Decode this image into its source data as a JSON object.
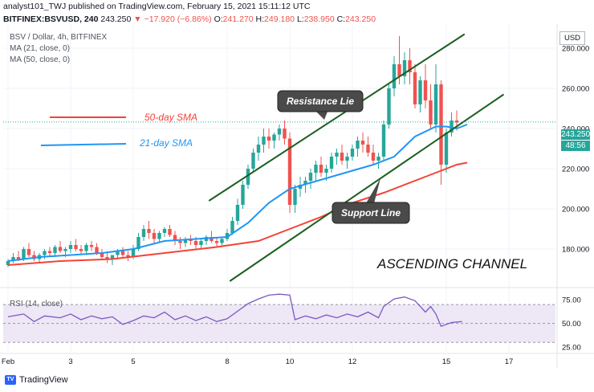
{
  "header": {
    "line1": "analyst101_TWJ published on TradingView.com, February 15, 2021 15:11:12 UTC",
    "symbol": "BITFINEX:BSVUSD, 240",
    "last": "243.250",
    "change": "▼ −17.920 (−6.86%)",
    "o_label": "O:",
    "o": "241.270",
    "h_label": "H:",
    "h": "249.180",
    "l_label": "L:",
    "l": "238.950",
    "c_label": "C:",
    "c": "243.250"
  },
  "legend": {
    "title": "BSV / Dollar, 4h, BITFINEX",
    "ma21": "MA (21, close, 0)",
    "ma50": "MA (50, close, 0)"
  },
  "rsi_legend": "RSI (14, close)",
  "currency_button": "USD",
  "price_label": "243.250",
  "time_label": "48:56",
  "annotations": {
    "sma50": "50-day SMA",
    "sma21": "21-day SMA",
    "resistance": "Resistance Lie",
    "support": "Support Line",
    "channel": "ASCENDING CHANNEL"
  },
  "brand": "TradingView",
  "colors": {
    "up": "#26a69a",
    "down": "#ef5350",
    "ma21": "#2196f3",
    "ma50": "#f44336",
    "channel": "#1b5e20",
    "rsi": "#7e57c2",
    "rsi_band": "#ede7f6"
  },
  "chart_data": {
    "type": "candlestick",
    "price_axis": {
      "ticks": [
        "280.000",
        "260.000",
        "240.000",
        "220.000",
        "200.000",
        "180.000"
      ],
      "ylim": [
        166,
        292
      ]
    },
    "rsi_axis": {
      "ticks": [
        "75.00",
        "50.00",
        "25.00"
      ],
      "band": [
        30,
        70
      ],
      "ylim": [
        20,
        82
      ]
    },
    "x_ticks": [
      "Feb",
      "3",
      "5",
      "8",
      "10",
      "12",
      "15",
      "17"
    ],
    "x_tick_index": [
      0,
      12,
      24,
      42,
      54,
      66,
      84,
      96
    ],
    "candles": [
      [
        172,
        175,
        171,
        174
      ],
      [
        174,
        178,
        173,
        176
      ],
      [
        176,
        179,
        174,
        175
      ],
      [
        175,
        181,
        174,
        180
      ],
      [
        180,
        183,
        176,
        177
      ],
      [
        177,
        179,
        174,
        175
      ],
      [
        175,
        178,
        173,
        177
      ],
      [
        177,
        180,
        175,
        179
      ],
      [
        179,
        181,
        176,
        178
      ],
      [
        178,
        182,
        176,
        181
      ],
      [
        181,
        184,
        178,
        179
      ],
      [
        179,
        181,
        176,
        180
      ],
      [
        180,
        184,
        178,
        182
      ],
      [
        182,
        185,
        179,
        180
      ],
      [
        180,
        182,
        177,
        179
      ],
      [
        179,
        183,
        177,
        182
      ],
      [
        182,
        184,
        179,
        181
      ],
      [
        181,
        183,
        177,
        178
      ],
      [
        178,
        180,
        175,
        176
      ],
      [
        176,
        178,
        173,
        175
      ],
      [
        175,
        177,
        172,
        177
      ],
      [
        177,
        180,
        175,
        179
      ],
      [
        179,
        181,
        176,
        177
      ],
      [
        177,
        179,
        174,
        176
      ],
      [
        176,
        182,
        175,
        180
      ],
      [
        180,
        188,
        179,
        186
      ],
      [
        186,
        192,
        184,
        190
      ],
      [
        190,
        194,
        185,
        188
      ],
      [
        188,
        190,
        183,
        185
      ],
      [
        185,
        189,
        183,
        188
      ],
      [
        188,
        191,
        186,
        190
      ],
      [
        190,
        192,
        186,
        187
      ],
      [
        187,
        189,
        182,
        184
      ],
      [
        184,
        186,
        180,
        183
      ],
      [
        183,
        186,
        181,
        185
      ],
      [
        185,
        187,
        182,
        184
      ],
      [
        184,
        186,
        180,
        182
      ],
      [
        182,
        185,
        180,
        184
      ],
      [
        184,
        187,
        182,
        186
      ],
      [
        186,
        189,
        183,
        184
      ],
      [
        184,
        186,
        181,
        183
      ],
      [
        183,
        186,
        181,
        185
      ],
      [
        185,
        190,
        184,
        188
      ],
      [
        188,
        196,
        187,
        194
      ],
      [
        194,
        205,
        192,
        202
      ],
      [
        202,
        214,
        200,
        212
      ],
      [
        212,
        222,
        210,
        220
      ],
      [
        220,
        230,
        218,
        228
      ],
      [
        228,
        236,
        224,
        232
      ],
      [
        232,
        240,
        228,
        236
      ],
      [
        236,
        240,
        230,
        234
      ],
      [
        234,
        238,
        230,
        237
      ],
      [
        237,
        242,
        234,
        240
      ],
      [
        240,
        244,
        232,
        235
      ],
      [
        235,
        238,
        198,
        202
      ],
      [
        202,
        212,
        198,
        210
      ],
      [
        210,
        216,
        206,
        212
      ],
      [
        212,
        216,
        208,
        214
      ],
      [
        214,
        220,
        210,
        218
      ],
      [
        218,
        224,
        214,
        222
      ],
      [
        222,
        226,
        216,
        218
      ],
      [
        218,
        222,
        214,
        220
      ],
      [
        220,
        228,
        218,
        226
      ],
      [
        226,
        230,
        222,
        228
      ],
      [
        228,
        232,
        222,
        224
      ],
      [
        224,
        228,
        220,
        226
      ],
      [
        226,
        232,
        224,
        230
      ],
      [
        230,
        236,
        226,
        234
      ],
      [
        234,
        238,
        228,
        232
      ],
      [
        232,
        236,
        226,
        228
      ],
      [
        228,
        232,
        222,
        224
      ],
      [
        224,
        228,
        220,
        226
      ],
      [
        226,
        244,
        224,
        242
      ],
      [
        242,
        262,
        240,
        260
      ],
      [
        260,
        276,
        256,
        272
      ],
      [
        272,
        286,
        262,
        266
      ],
      [
        266,
        278,
        262,
        274
      ],
      [
        274,
        280,
        262,
        268
      ],
      [
        268,
        272,
        250,
        252
      ],
      [
        252,
        266,
        248,
        264
      ],
      [
        264,
        272,
        250,
        254
      ],
      [
        254,
        262,
        240,
        242
      ],
      [
        242,
        272,
        238,
        262
      ],
      [
        262,
        264,
        212,
        222
      ],
      [
        222,
        240,
        218,
        238
      ],
      [
        238,
        248,
        236,
        244
      ],
      [
        244,
        249,
        239,
        243
      ]
    ],
    "ma21": [
      [
        0,
        174
      ],
      [
        6,
        176
      ],
      [
        12,
        177
      ],
      [
        18,
        178
      ],
      [
        24,
        180
      ],
      [
        30,
        184
      ],
      [
        36,
        185
      ],
      [
        42,
        186
      ],
      [
        46,
        193
      ],
      [
        50,
        203
      ],
      [
        54,
        210
      ],
      [
        58,
        213
      ],
      [
        62,
        216
      ],
      [
        66,
        219
      ],
      [
        70,
        222
      ],
      [
        74,
        226
      ],
      [
        78,
        236
      ],
      [
        82,
        241
      ],
      [
        84,
        241
      ],
      [
        86,
        240
      ],
      [
        88,
        242
      ]
    ],
    "ma50": [
      [
        0,
        172
      ],
      [
        10,
        174
      ],
      [
        20,
        175
      ],
      [
        30,
        178
      ],
      [
        40,
        181
      ],
      [
        48,
        184
      ],
      [
        54,
        190
      ],
      [
        60,
        196
      ],
      [
        66,
        203
      ],
      [
        72,
        208
      ],
      [
        78,
        214
      ],
      [
        82,
        218
      ],
      [
        86,
        222
      ],
      [
        88,
        223
      ]
    ],
    "rsi": [
      [
        0,
        57
      ],
      [
        3,
        60
      ],
      [
        5,
        52
      ],
      [
        7,
        58
      ],
      [
        10,
        56
      ],
      [
        12,
        60
      ],
      [
        14,
        54
      ],
      [
        16,
        58
      ],
      [
        18,
        55
      ],
      [
        20,
        57
      ],
      [
        22,
        49
      ],
      [
        24,
        53
      ],
      [
        26,
        58
      ],
      [
        28,
        56
      ],
      [
        30,
        62
      ],
      [
        32,
        54
      ],
      [
        34,
        58
      ],
      [
        36,
        53
      ],
      [
        38,
        57
      ],
      [
        40,
        52
      ],
      [
        42,
        55
      ],
      [
        44,
        63
      ],
      [
        46,
        71
      ],
      [
        48,
        76
      ],
      [
        50,
        80
      ],
      [
        52,
        81
      ],
      [
        54,
        80
      ],
      [
        55,
        54
      ],
      [
        57,
        58
      ],
      [
        59,
        55
      ],
      [
        61,
        59
      ],
      [
        63,
        56
      ],
      [
        65,
        60
      ],
      [
        67,
        57
      ],
      [
        69,
        62
      ],
      [
        71,
        56
      ],
      [
        72,
        68
      ],
      [
        74,
        76
      ],
      [
        76,
        78
      ],
      [
        78,
        74
      ],
      [
        80,
        62
      ],
      [
        81,
        68
      ],
      [
        82,
        60
      ],
      [
        83,
        47
      ],
      [
        85,
        51
      ],
      [
        87,
        52
      ]
    ],
    "channel_lines": [
      {
        "name": "upper",
        "points": [
          [
            38.5,
            204
          ],
          [
            87.5,
            287
          ]
        ]
      },
      {
        "name": "lower",
        "points": [
          [
            42.5,
            164
          ],
          [
            95,
            257
          ]
        ]
      }
    ],
    "last_price": 243.25
  }
}
